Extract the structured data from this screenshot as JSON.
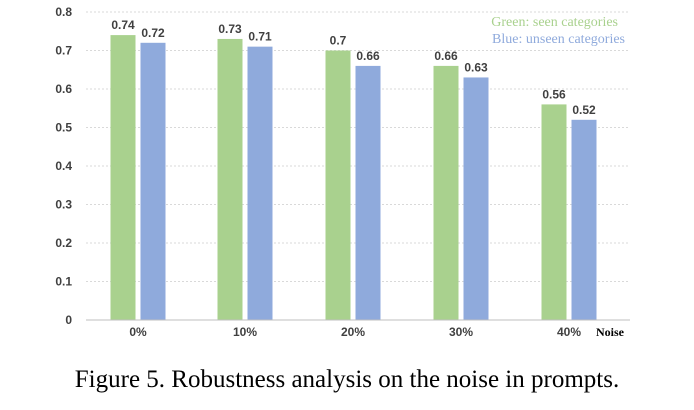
{
  "caption": "Figure 5. Robustness analysis on the noise in prompts.",
  "chart_data": {
    "type": "bar",
    "categories": [
      "0%",
      "10%",
      "20%",
      "30%",
      "40%"
    ],
    "xlabel": "Noise",
    "ylabel": "",
    "ylim": [
      0,
      0.8
    ],
    "yticks": [
      "0",
      "0.1",
      "0.2",
      "0.3",
      "0.4",
      "0.5",
      "0.6",
      "0.7",
      "0.8"
    ],
    "grid": true,
    "legend_position": "top-right",
    "legend": [
      "Green: seen categories",
      "Blue: unseen categories"
    ],
    "series": [
      {
        "values": [
          0.74,
          0.73,
          0.7,
          0.66,
          0.56
        ],
        "labels": [
          "0.74",
          "0.73",
          "0.7",
          "0.66",
          "0.56"
        ],
        "color": "#a9d18e"
      },
      {
        "values": [
          0.72,
          0.71,
          0.66,
          0.63,
          0.52
        ],
        "labels": [
          "0.72",
          "0.71",
          "0.66",
          "0.63",
          "0.52"
        ],
        "color": "#8faadc"
      }
    ],
    "legend_colors": [
      "#a9d18e",
      "#8faadc"
    ],
    "axis_color": "#bfbfbf",
    "grid_color": "#d9d9d9"
  }
}
